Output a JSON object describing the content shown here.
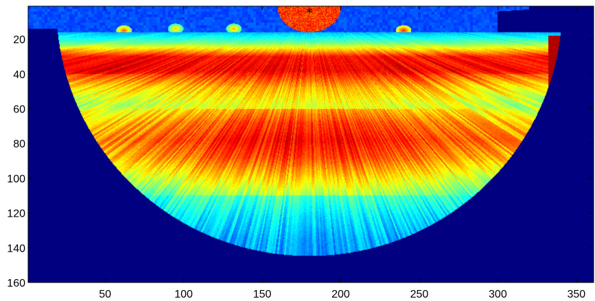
{
  "chart_data": {
    "type": "heatmap",
    "title": "",
    "xlabel": "",
    "ylabel": "",
    "xlim": [
      1,
      361
    ],
    "ylim": [
      160,
      1
    ],
    "y_axis_direction": "reversed",
    "colormap": "jet",
    "grid": false,
    "legend": "none",
    "x_ticks": [
      50,
      100,
      150,
      200,
      250,
      300,
      350
    ],
    "y_ticks": [
      20,
      40,
      60,
      80,
      100,
      120,
      140,
      160
    ],
    "x_tick_labels": [
      "50",
      "100",
      "150",
      "200",
      "250",
      "300",
      "350"
    ],
    "y_tick_labels": [
      "20",
      "40",
      "60",
      "80",
      "100",
      "120",
      "140",
      "160"
    ],
    "marker": {
      "symbol": "*",
      "x": 180,
      "y": 4
    },
    "fan_shape": {
      "apex_x": 180,
      "apex_y": 1,
      "radius": 161,
      "left_edge_x": 1,
      "right_edge_x": 361
    },
    "background_value": 0.0,
    "rows": [
      1,
      8,
      16,
      22,
      30,
      38,
      48,
      58,
      68,
      78,
      88,
      98,
      110,
      122,
      135,
      148,
      160
    ],
    "row_values": [
      0.17,
      0.22,
      0.3,
      0.48,
      0.86,
      0.88,
      0.7,
      0.6,
      0.72,
      0.78,
      0.72,
      0.6,
      0.45,
      0.36,
      0.3,
      0.28,
      0.26
    ],
    "bright_spots": [
      {
        "x": 62,
        "y": 15,
        "value": 0.8
      },
      {
        "x": 95,
        "y": 14,
        "value": 0.7
      },
      {
        "x": 132,
        "y": 14,
        "value": 0.72
      },
      {
        "x": 240,
        "y": 15,
        "value": 0.85
      },
      {
        "x": 180,
        "y": 12,
        "value": 0.9
      }
    ],
    "hot_band": {
      "x_min": 332,
      "x_max": 352,
      "y_min": 18,
      "y_max": 98,
      "value": 0.95
    }
  }
}
